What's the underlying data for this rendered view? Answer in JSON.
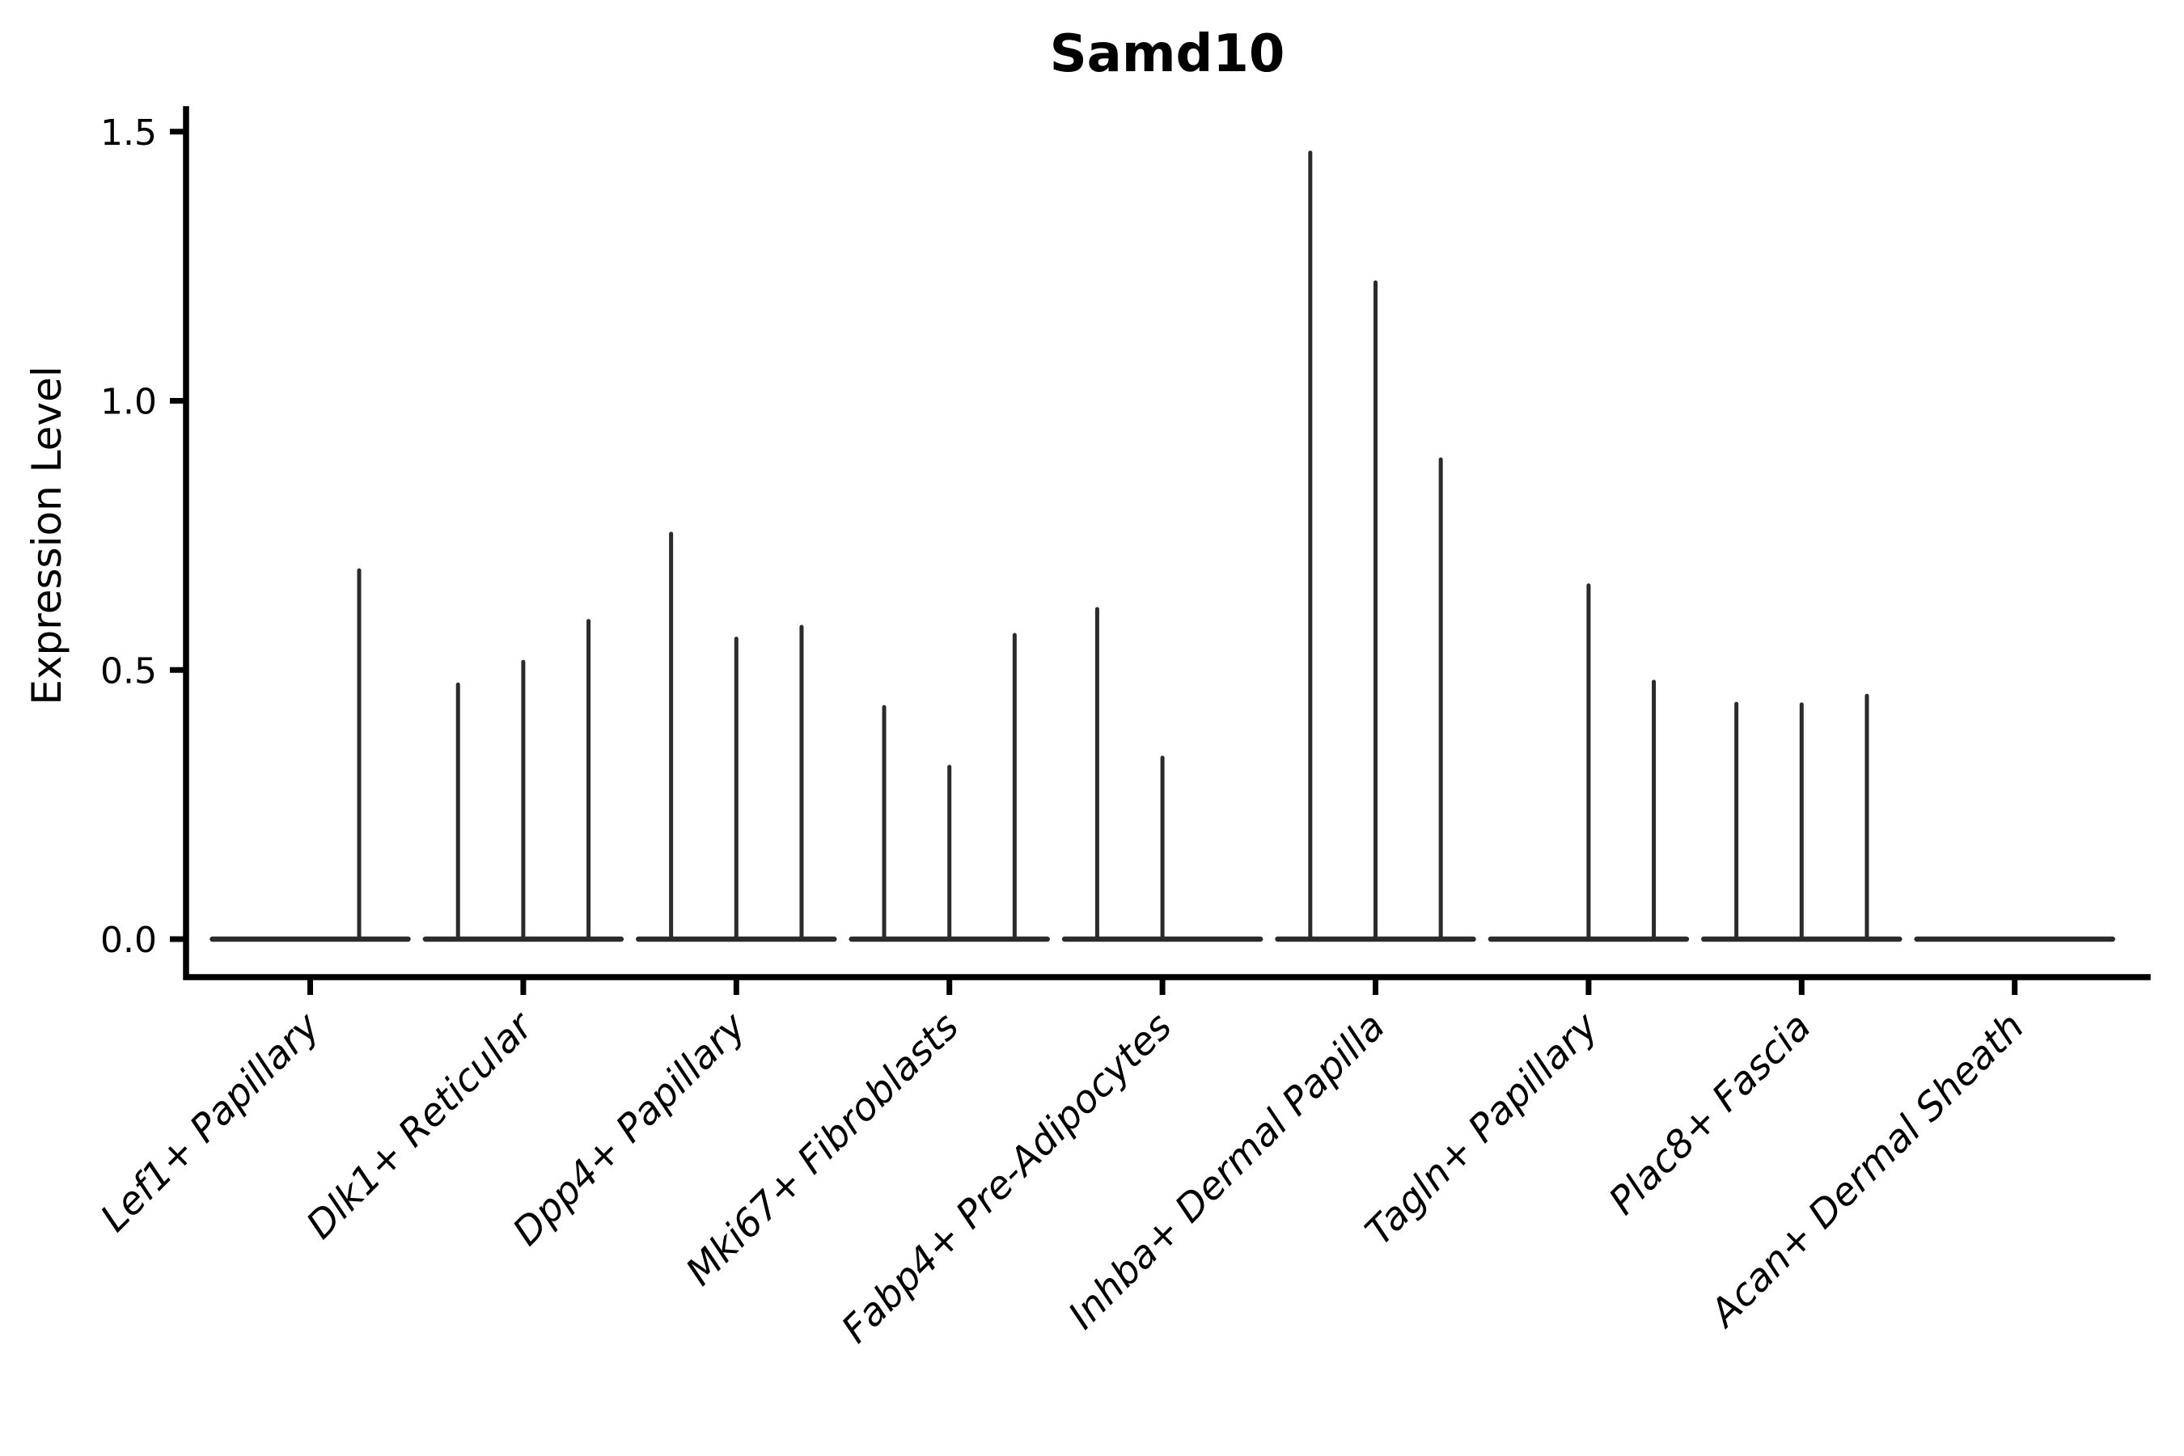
{
  "chart_data": {
    "type": "violin",
    "title": "Samd10",
    "ylabel": "Expression Level",
    "xlabel": "",
    "ylim": [
      0.0,
      1.5
    ],
    "yticks": [
      0.0,
      0.5,
      1.0,
      1.5
    ],
    "ytick_labels": [
      "0.0",
      "0.5",
      "1.0",
      "1.5"
    ],
    "grid": false,
    "legend": "none",
    "categories": [
      "Lef1+ Papillary",
      "Dlk1+ Reticular",
      "Dpp4+ Papillary",
      "Mki67+ Fibroblasts",
      "Fabp4+ Pre-Adipocytes",
      "Inhba+ Dermal Papilla",
      "Tagln+ Papillary",
      "Plac8+ Fascia",
      "Acan+ Dermal Sheath"
    ],
    "series": [
      {
        "category": "Lef1+ Papillary",
        "violin_maxima": [
          0.0,
          0.685
        ]
      },
      {
        "category": "Dlk1+ Reticular",
        "violin_maxima": [
          0.473,
          0.515,
          0.591
        ]
      },
      {
        "category": "Dpp4+ Papillary",
        "violin_maxima": [
          0.753,
          0.558,
          0.58
        ]
      },
      {
        "category": "Mki67+ Fibroblasts",
        "violin_maxima": [
          0.431,
          0.32,
          0.565
        ]
      },
      {
        "category": "Fabp4+ Pre-Adipocytes",
        "violin_maxima": [
          0.613,
          0.337,
          0.0
        ]
      },
      {
        "category": "Inhba+ Dermal Papilla",
        "violin_maxima": [
          1.461,
          1.22,
          0.891
        ]
      },
      {
        "category": "Tagln+ Papillary",
        "violin_maxima": [
          0.0,
          0.657,
          0.478
        ]
      },
      {
        "category": "Plac8+ Fascia",
        "violin_maxima": [
          0.437,
          0.436,
          0.452
        ]
      },
      {
        "category": "Acan+ Dermal Sheath",
        "violin_maxima": [
          0.0,
          0.0,
          0.0
        ]
      }
    ],
    "colors": {
      "violin_stroke": "#2b2b2b",
      "axis_stroke": "#000000",
      "background": "#ffffff"
    }
  }
}
